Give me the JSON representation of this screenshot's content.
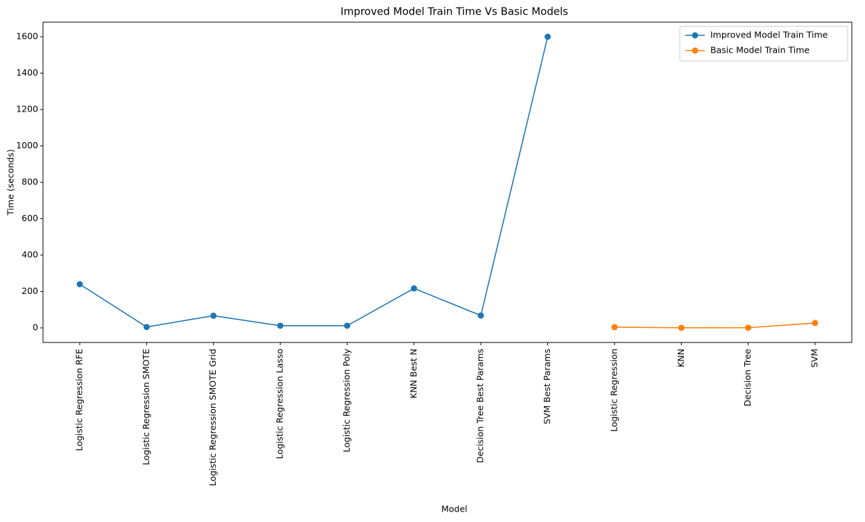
{
  "chart_data": {
    "type": "line",
    "title": "Improved Model Train Time Vs Basic Models",
    "x_label": "Model",
    "y_label": "Time (seconds)",
    "categories": [
      "Logistic Regression RFE",
      "Logistic Regression SMOTE",
      "Logistic Regression SMOTE Grid",
      "Logistic Regression Lasso",
      "Logistic Regression Poly",
      "KNN Best N",
      "Decision Tree Best Params",
      "SVM Best Params",
      "Logistic Regression",
      "KNN",
      "Decision Tree",
      "SVM"
    ],
    "series": [
      {
        "name": "Improved Model Train Time",
        "color": "#1f77b4",
        "values": [
          240,
          5,
          67,
          12,
          12,
          217,
          68,
          1600,
          null,
          null,
          null,
          null
        ]
      },
      {
        "name": "Basic Model Train Time",
        "color": "#ff7f0e",
        "values": [
          null,
          null,
          null,
          null,
          null,
          null,
          null,
          null,
          4,
          0.5,
          1,
          27
        ]
      }
    ],
    "ylim": [
      -80,
      1680
    ],
    "yticks": [
      0,
      200,
      400,
      600,
      800,
      1000,
      1200,
      1400,
      1600
    ],
    "grid": false,
    "legend": "upper right"
  }
}
